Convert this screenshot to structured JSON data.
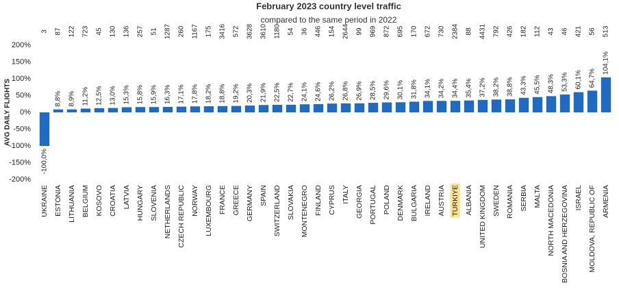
{
  "chart_data": {
    "type": "bar",
    "title": "February 2023 country level traffic",
    "subtitle": "compared to the same period in 2022",
    "y_label": "AVG DAILY FLIGHTS",
    "categories": [
      "UKRAINE",
      "ESTONIA",
      "LITHUANIA",
      "BELGIUM",
      "KOSOVO",
      "CROATIA",
      "LATVIA",
      "HUNGARY",
      "SLOVENIA",
      "NETHERLANDS",
      "CZECH REPUBLIC",
      "NORWAY",
      "LUXEMBOURG",
      "FRANCE",
      "GREECE",
      "GERMANY",
      "SPAIN",
      "SWITZERLAND",
      "SLOVAKIA",
      "MONTENEGRO",
      "FINLAND",
      "CYPRUS",
      "ITALY",
      "GEORGIA",
      "PORTUGAL",
      "POLAND",
      "DENMARK",
      "BULGARIA",
      "IRELAND",
      "AUSTRIA",
      "TURKIYE",
      "ALBANIA",
      "UNITED KINGDOM",
      "SWEDEN",
      "ROMANIA",
      "SERBIA",
      "MALTA",
      "NORTH MACEDONIA",
      "BOSNIA AND HERZEGOVINA",
      "ISRAEL",
      "MOLDOVA, REPUBLIC OF",
      "ARMENIA"
    ],
    "values": [
      -100.0,
      8.8,
      8.9,
      11.2,
      12.5,
      13.0,
      15.3,
      15.8,
      15.9,
      16.3,
      17.1,
      17.8,
      18.2,
      18.8,
      19.2,
      20.3,
      21.9,
      22.5,
      22.7,
      24.1,
      24.6,
      26.2,
      26.8,
      26.9,
      28.5,
      29.6,
      30.1,
      31.8,
      34.1,
      34.2,
      34.4,
      35.4,
      37.2,
      38.2,
      38.8,
      43.3,
      45.5,
      48.3,
      53.3,
      60.1,
      64.7,
      104.1
    ],
    "value_labels": [
      "-100,0%",
      "8,8%",
      "8,9%",
      "11,2%",
      "12,5%",
      "13,0%",
      "15,3%",
      "15,8%",
      "15,9%",
      "16,3%",
      "17,1%",
      "17,8%",
      "18,2%",
      "18,8%",
      "19,2%",
      "20,3%",
      "21,9%",
      "22,5%",
      "22,7%",
      "24,1%",
      "24,6%",
      "26,2%",
      "26,8%",
      "26,9%",
      "28,5%",
      "29,6%",
      "30,1%",
      "31,8%",
      "34,1%",
      "34,2%",
      "34,4%",
      "35,4%",
      "37,2%",
      "38,2%",
      "38,8%",
      "43,3%",
      "45,5%",
      "48,3%",
      "53,3%",
      "60,1%",
      "64,7%",
      "104,1%"
    ],
    "flights": [
      3,
      87,
      122,
      723,
      45,
      130,
      136,
      257,
      51,
      1287,
      260,
      1167,
      175,
      3416,
      572,
      3628,
      3610,
      1180,
      54,
      36,
      446,
      154,
      2644,
      99,
      969,
      872,
      695,
      170,
      672,
      730,
      2384,
      88,
      4431,
      792,
      426,
      182,
      112,
      43,
      46,
      421,
      56,
      513
    ],
    "color": "#1f6bc4",
    "highlight": "TURKIYE",
    "ylim": [
      -200,
      200
    ],
    "yticks": [
      {
        "value": 200,
        "label": "200%"
      },
      {
        "value": 150,
        "label": "150%"
      },
      {
        "value": 100,
        "label": "100%"
      },
      {
        "value": 50,
        "label": "50%"
      },
      {
        "value": 0,
        "label": "0%"
      },
      {
        "value": -50,
        "label": "-50%"
      },
      {
        "value": -100,
        "label": "-100%"
      },
      {
        "value": -150,
        "label": "-150%"
      },
      {
        "value": -200,
        "label": "-200%"
      }
    ],
    "grid": false
  }
}
